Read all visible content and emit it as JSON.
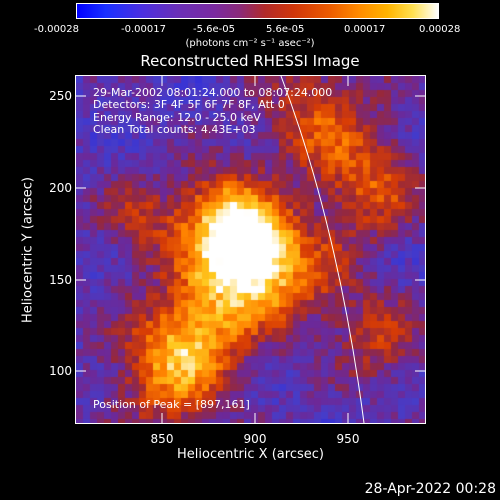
{
  "colorbar": {
    "ticks": [
      "-0.00028",
      "-0.00017",
      "-5.6e-05",
      "5.6e-05",
      "0.00017",
      "0.00028"
    ],
    "units": "(photons cm⁻² s⁻¹ asec⁻²)"
  },
  "title": "Reconstructed RHESSI Image",
  "annotations": {
    "time_range": "29-Mar-2002 08:01:24.000 to 08:07:24.000",
    "detectors": "Detectors: 3F 4F 5F 6F 7F 8F, Att 0",
    "energy": "Energy Range: 12.0 - 25.0 keV",
    "method": "Clean     Total counts: 4.43E+03",
    "peak": "Position of Peak = [897,161]"
  },
  "axes": {
    "x_label": "Heliocentric X (arcsec)",
    "y_label": "Heliocentric Y (arcsec)",
    "x_ticks": [
      "850",
      "900",
      "950"
    ],
    "y_ticks": [
      "250",
      "200",
      "150",
      "100"
    ]
  },
  "footer": "28-Apr-2022 00:28",
  "colors": {
    "background": "#000000",
    "limb_line": "#ffffff"
  }
}
